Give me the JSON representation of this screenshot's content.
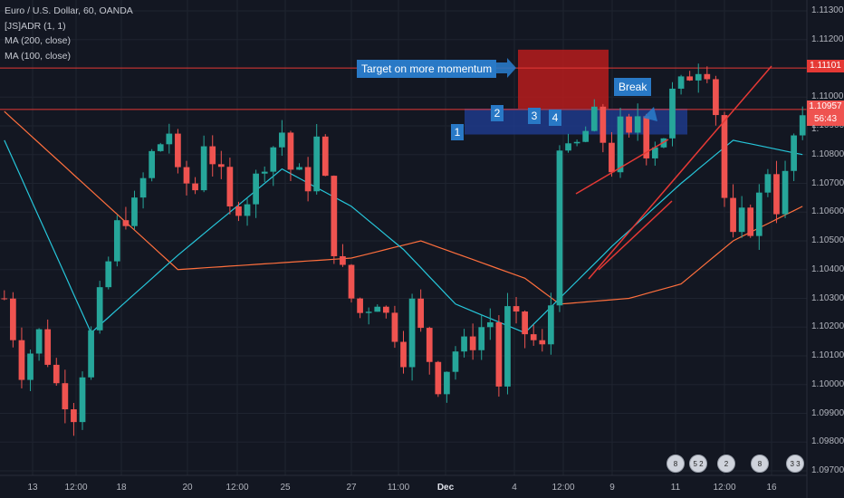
{
  "legend": {
    "title": "Euro / U.S. Dollar, 60, OANDA",
    "adr": "[JS]ADR (1, 1)",
    "ma200": "MA (200, close)",
    "ma100": "MA (100, close)"
  },
  "annotations": {
    "target": "Target on more momentum",
    "break": "Break",
    "n1": "1",
    "n2": "2",
    "n3": "3",
    "n4": "4"
  },
  "price_labels": {
    "target": "1.11101",
    "current": "1.10957",
    "countdown": "56:43",
    "partial": "1."
  },
  "events": [
    "8",
    "5 2",
    "2",
    "8",
    "3 3"
  ],
  "colors": {
    "background": "#131722",
    "bullish": "#26a69a",
    "bearish": "#ef5350",
    "ma200": "#ff6f3d",
    "ma100": "#26c6da",
    "zone_blue": "#1e3a8a",
    "zone_red": "#b71c1c",
    "annotation_blue": "#2979c6",
    "level_line": "#e53935",
    "wedge": "#e53935"
  },
  "chart_data": {
    "type": "candlestick",
    "title": "Euro / U.S. Dollar, 60, OANDA",
    "y_ticks": [
      "1.11300",
      "1.11200",
      "1.11000",
      "1.10900",
      "1.10800",
      "1.10700",
      "1.10600",
      "1.10500",
      "1.10400",
      "1.10300",
      "1.10200",
      "1.10100",
      "1.10000",
      "1.09900",
      "1.09800",
      "1.09700"
    ],
    "x_ticks": [
      "13",
      "12:00",
      "18",
      "20",
      "12:00",
      "25",
      "27",
      "11:00",
      "Dec",
      "4",
      "12:00",
      "9",
      "11",
      "12:00",
      "16"
    ],
    "ylim": [
      1.097,
      1.1135
    ],
    "levels": [
      1.11101,
      1.10957
    ],
    "path": [
      [
        0,
        1.103
      ],
      [
        2,
        1.1005
      ],
      [
        4,
        1.1018
      ],
      [
        6,
        1.1
      ],
      [
        8,
        1.099
      ],
      [
        9,
        1.1005
      ],
      [
        11,
        1.103
      ],
      [
        13,
        1.1055
      ],
      [
        15,
        1.1062
      ],
      [
        17,
        1.108
      ],
      [
        19,
        1.1088
      ],
      [
        20,
        1.1072
      ],
      [
        22,
        1.1068
      ],
      [
        23,
        1.1085
      ],
      [
        25,
        1.1072
      ],
      [
        26,
        1.106
      ],
      [
        28,
        1.1065
      ],
      [
        30,
        1.1078
      ],
      [
        32,
        1.1088
      ],
      [
        33,
        1.1075
      ],
      [
        35,
        1.107
      ],
      [
        36,
        1.1085
      ],
      [
        37,
        1.107
      ],
      [
        38,
        1.1048
      ],
      [
        40,
        1.103
      ],
      [
        41,
        1.1025
      ],
      [
        43,
        1.103
      ],
      [
        45,
        1.1018
      ],
      [
        46,
        1.101
      ],
      [
        47,
        1.1028
      ],
      [
        48,
        1.1018
      ],
      [
        50,
        1.1
      ],
      [
        52,
        1.1012
      ],
      [
        54,
        1.1015
      ],
      [
        55,
        1.102
      ],
      [
        56,
        1.1022
      ],
      [
        57,
        1.1
      ],
      [
        58,
        1.1025
      ],
      [
        60,
        1.1018
      ],
      [
        62,
        1.1012
      ],
      [
        63,
        1.1028
      ],
      [
        64,
        1.1085
      ],
      [
        65,
        1.108
      ],
      [
        66,
        1.1083
      ],
      [
        68,
        1.1093
      ],
      [
        69,
        1.1085
      ],
      [
        70,
        1.1076
      ],
      [
        71,
        1.109
      ],
      [
        72,
        1.1085
      ],
      [
        73,
        1.1094
      ],
      [
        74,
        1.1082
      ],
      [
        76,
        1.1087
      ],
      [
        77,
        1.1101
      ],
      [
        78,
        1.1104
      ],
      [
        79,
        1.1108
      ],
      [
        80,
        1.1111
      ],
      [
        81,
        1.111
      ],
      [
        82,
        1.1095
      ],
      [
        83,
        1.1065
      ],
      [
        84,
        1.105
      ],
      [
        85,
        1.1058
      ],
      [
        86,
        1.1055
      ],
      [
        88,
        1.1075
      ],
      [
        89,
        1.1062
      ],
      [
        90,
        1.1072
      ],
      [
        91,
        1.1086
      ],
      [
        92,
        1.109
      ]
    ],
    "ma200": [
      [
        0,
        1.1095
      ],
      [
        20,
        1.104
      ],
      [
        40,
        1.1044
      ],
      [
        48,
        1.105
      ],
      [
        60,
        1.1037
      ],
      [
        64,
        1.1028
      ],
      [
        72,
        1.103
      ],
      [
        78,
        1.1035
      ],
      [
        84,
        1.105
      ],
      [
        92,
        1.1062
      ]
    ],
    "ma100": [
      [
        0,
        1.1085
      ],
      [
        10,
        1.1018
      ],
      [
        20,
        1.1045
      ],
      [
        32,
        1.1075
      ],
      [
        40,
        1.1062
      ],
      [
        46,
        1.1047
      ],
      [
        52,
        1.1028
      ],
      [
        60,
        1.1018
      ],
      [
        64,
        1.103
      ],
      [
        70,
        1.1048
      ],
      [
        78,
        1.107
      ],
      [
        84,
        1.1085
      ],
      [
        92,
        1.108
      ]
    ]
  }
}
